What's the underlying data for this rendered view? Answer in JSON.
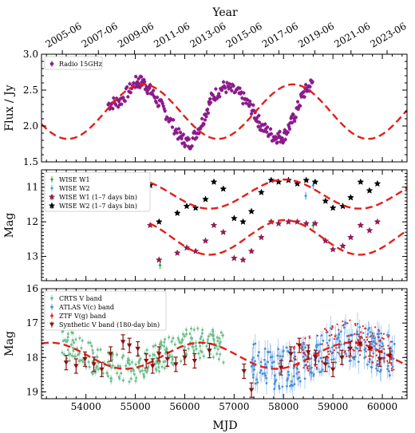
{
  "top_axis": {
    "label": "Year",
    "ticks": [
      "2005-06",
      "2007-06",
      "2009-06",
      "2011-06",
      "2013-06",
      "2015-06",
      "2017-06",
      "2019-06",
      "2021-06",
      "2023-06"
    ],
    "tick_mjd": [
      53522,
      54252,
      54983,
      55713,
      56444,
      57174,
      57905,
      58635,
      59366,
      60096
    ]
  },
  "chart_data": [
    {
      "type": "scatter",
      "ylabel": "Flux / Jy",
      "xlim": [
        53100,
        60500
      ],
      "ylim": [
        1.5,
        3.0
      ],
      "yticks": [
        1.5,
        2.0,
        2.5,
        3.0
      ],
      "ytick_labels": [
        "1.5",
        "2.0",
        "2.5",
        "3.0"
      ],
      "series": [
        {
          "name": "Radio 15GHz",
          "color": "#8b1a8b",
          "x": [
            54450,
            54700,
            55000,
            55150,
            55350,
            55600,
            55900,
            56100,
            56350,
            56550,
            56800,
            57100,
            57350,
            57550,
            57800,
            58000,
            58200,
            58400,
            58600
          ],
          "y": [
            2.3,
            2.35,
            2.6,
            2.62,
            2.45,
            2.2,
            1.85,
            1.75,
            2.05,
            2.4,
            2.55,
            2.45,
            2.25,
            2.0,
            1.85,
            1.85,
            2.1,
            2.45,
            2.62
          ]
        }
      ],
      "fit": {
        "mean": 2.2,
        "amp": 0.38,
        "period": 3041,
        "peak_mjd": 55152
      }
    },
    {
      "type": "scatter",
      "ylabel": "Mag",
      "xlim": [
        53100,
        60500
      ],
      "ylim": [
        13.7,
        10.5
      ],
      "yticks": [
        11,
        12,
        13
      ],
      "ytick_labels": [
        "11",
        "12",
        "13"
      ],
      "series": [
        {
          "name": "WISE W1",
          "color": "#2ca02c",
          "x": [
            55500,
            58600
          ],
          "y": [
            13.25,
            12.1
          ]
        },
        {
          "name": "WISE W2",
          "color": "#3a9be8",
          "x": [
            58450,
            58600
          ],
          "y": [
            11.25,
            10.95
          ]
        },
        {
          "name": "WISE W1 (1–7 days bin)",
          "color": "#8e1f55",
          "x": [
            55300,
            55480,
            55850,
            56040,
            56220,
            56420,
            56590,
            56780,
            57000,
            57180,
            57350,
            57550,
            57750,
            57900,
            58100,
            58280,
            58460,
            58640,
            58850,
            59000,
            59200,
            59360,
            59560,
            59740,
            59900
          ],
          "y": [
            12.1,
            13.1,
            12.9,
            12.75,
            12.85,
            12.55,
            12.1,
            12.3,
            13.05,
            13.1,
            12.85,
            12.45,
            12.0,
            12.05,
            12.0,
            12.0,
            12.05,
            12.05,
            12.55,
            12.8,
            12.7,
            12.45,
            12.1,
            12.25,
            12.0
          ]
        },
        {
          "name": "WISE W2 (1–7 days bin)",
          "color": "#000000",
          "x": [
            55300,
            55480,
            55850,
            56040,
            56220,
            56420,
            56590,
            56780,
            57000,
            57180,
            57350,
            57550,
            57750,
            57900,
            58100,
            58280,
            58460,
            58640,
            58850,
            59000,
            59200,
            59360,
            59560,
            59740,
            59900
          ],
          "y": [
            10.95,
            12.0,
            11.75,
            11.55,
            11.6,
            11.35,
            10.85,
            11.05,
            11.9,
            12.0,
            11.7,
            11.15,
            10.8,
            10.85,
            10.8,
            10.9,
            10.8,
            10.85,
            11.4,
            11.6,
            11.55,
            11.3,
            10.85,
            11.1,
            10.9
          ]
        }
      ],
      "fits": [
        {
          "mean": 11.2,
          "amp": 0.42,
          "period": 3041,
          "peak_mjd": 56500
        },
        {
          "mean": 12.45,
          "amp": 0.5,
          "period": 3041,
          "peak_mjd": 56500
        }
      ]
    },
    {
      "type": "scatter",
      "ylabel": "Mag",
      "xlabel": "MJD",
      "xlim": [
        53100,
        60500
      ],
      "ylim": [
        19.2,
        16.0
      ],
      "yticks": [
        16,
        17,
        18,
        19
      ],
      "ytick_labels": [
        "16",
        "17",
        "18",
        "19"
      ],
      "xticks": [
        54000,
        55000,
        56000,
        57000,
        58000,
        59000,
        60000
      ],
      "xtick_labels": [
        "54000",
        "55000",
        "56000",
        "57000",
        "58000",
        "59000",
        "60000"
      ],
      "series": [
        {
          "name": "CRTS V band",
          "color": "#6fbf8f",
          "x": [],
          "y": []
        },
        {
          "name": "ATLAS V(c) band",
          "color": "#4a90d9",
          "x": [],
          "y": []
        },
        {
          "name": "ZTF V(g) band",
          "color": "#e0201a",
          "x": [],
          "y": []
        },
        {
          "name": "Synthetic V band (180-day bin)",
          "color": "#8b1010",
          "x": [
            53600,
            53800,
            53980,
            54160,
            54320,
            54500,
            54750,
            54880,
            55050,
            55220,
            55350,
            55480,
            55650,
            55820,
            56000,
            56200,
            56500,
            57200,
            57350,
            57950,
            58150,
            58320,
            58500,
            58650,
            58850,
            59000,
            59180,
            59350,
            59550,
            59750,
            59950,
            60150
          ],
          "y": [
            18.15,
            18.25,
            18.05,
            18.2,
            18.35,
            17.9,
            17.55,
            17.65,
            17.75,
            18.1,
            18.25,
            17.9,
            18.05,
            18.2,
            18.0,
            18.1,
            17.8,
            18.4,
            18.95,
            18.3,
            17.9,
            17.65,
            17.85,
            18.0,
            18.2,
            18.35,
            18.0,
            17.75,
            17.6,
            17.75,
            18.05,
            17.95
          ]
        }
      ],
      "fit": {
        "mean": 17.95,
        "amp": 0.38,
        "period": 3041,
        "peak_mjd": 54800
      }
    }
  ]
}
